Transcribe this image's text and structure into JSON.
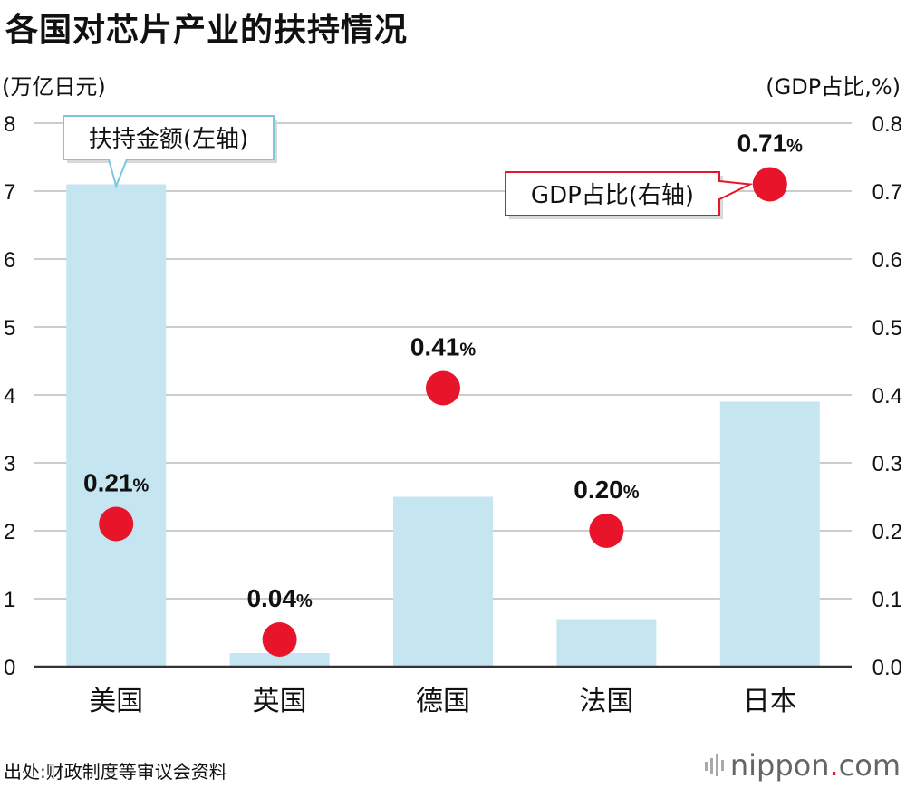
{
  "title": "各国对芯片产业的扶持情况",
  "unit_left": "(万亿日元)",
  "unit_right": "(GDP占比,%)",
  "source": "出处:财政制度等审议会资料",
  "logo": {
    "name": "nippon",
    "dot": ".",
    "suffix": "com"
  },
  "colors": {
    "bar": "#c5e6f0",
    "dot": "#e8142a",
    "grid": "#cccccc",
    "axis": "#333333"
  },
  "chart_data": {
    "type": "bar",
    "categories": [
      "美国",
      "英国",
      "德国",
      "法国",
      "日本"
    ],
    "series": [
      {
        "name": "扶持金额(左轴)",
        "type": "bar",
        "axis": "left",
        "values": [
          7.1,
          0.2,
          2.5,
          0.7,
          3.9
        ]
      },
      {
        "name": "GDP占比(右轴)",
        "type": "scatter",
        "axis": "right",
        "values": [
          0.21,
          0.04,
          0.41,
          0.2,
          0.71
        ],
        "labels": [
          "0.21",
          "0.04",
          "0.41",
          "0.20",
          "0.71"
        ],
        "label_suffix": "%"
      }
    ],
    "ylim_left": [
      0,
      8
    ],
    "yticks_left": [
      "0",
      "1",
      "2",
      "3",
      "4",
      "5",
      "6",
      "7",
      "8"
    ],
    "ylim_right": [
      0,
      0.8
    ],
    "yticks_right": [
      "0.0",
      "0.1",
      "0.2",
      "0.3",
      "0.4",
      "0.5",
      "0.6",
      "0.7",
      "0.8"
    ],
    "grid": true,
    "legend_callouts": [
      {
        "text": "扶持金额(左轴)",
        "series": 0,
        "style": "box-blue"
      },
      {
        "text": "GDP占比(右轴)",
        "series": 1,
        "style": "box-red"
      }
    ]
  }
}
